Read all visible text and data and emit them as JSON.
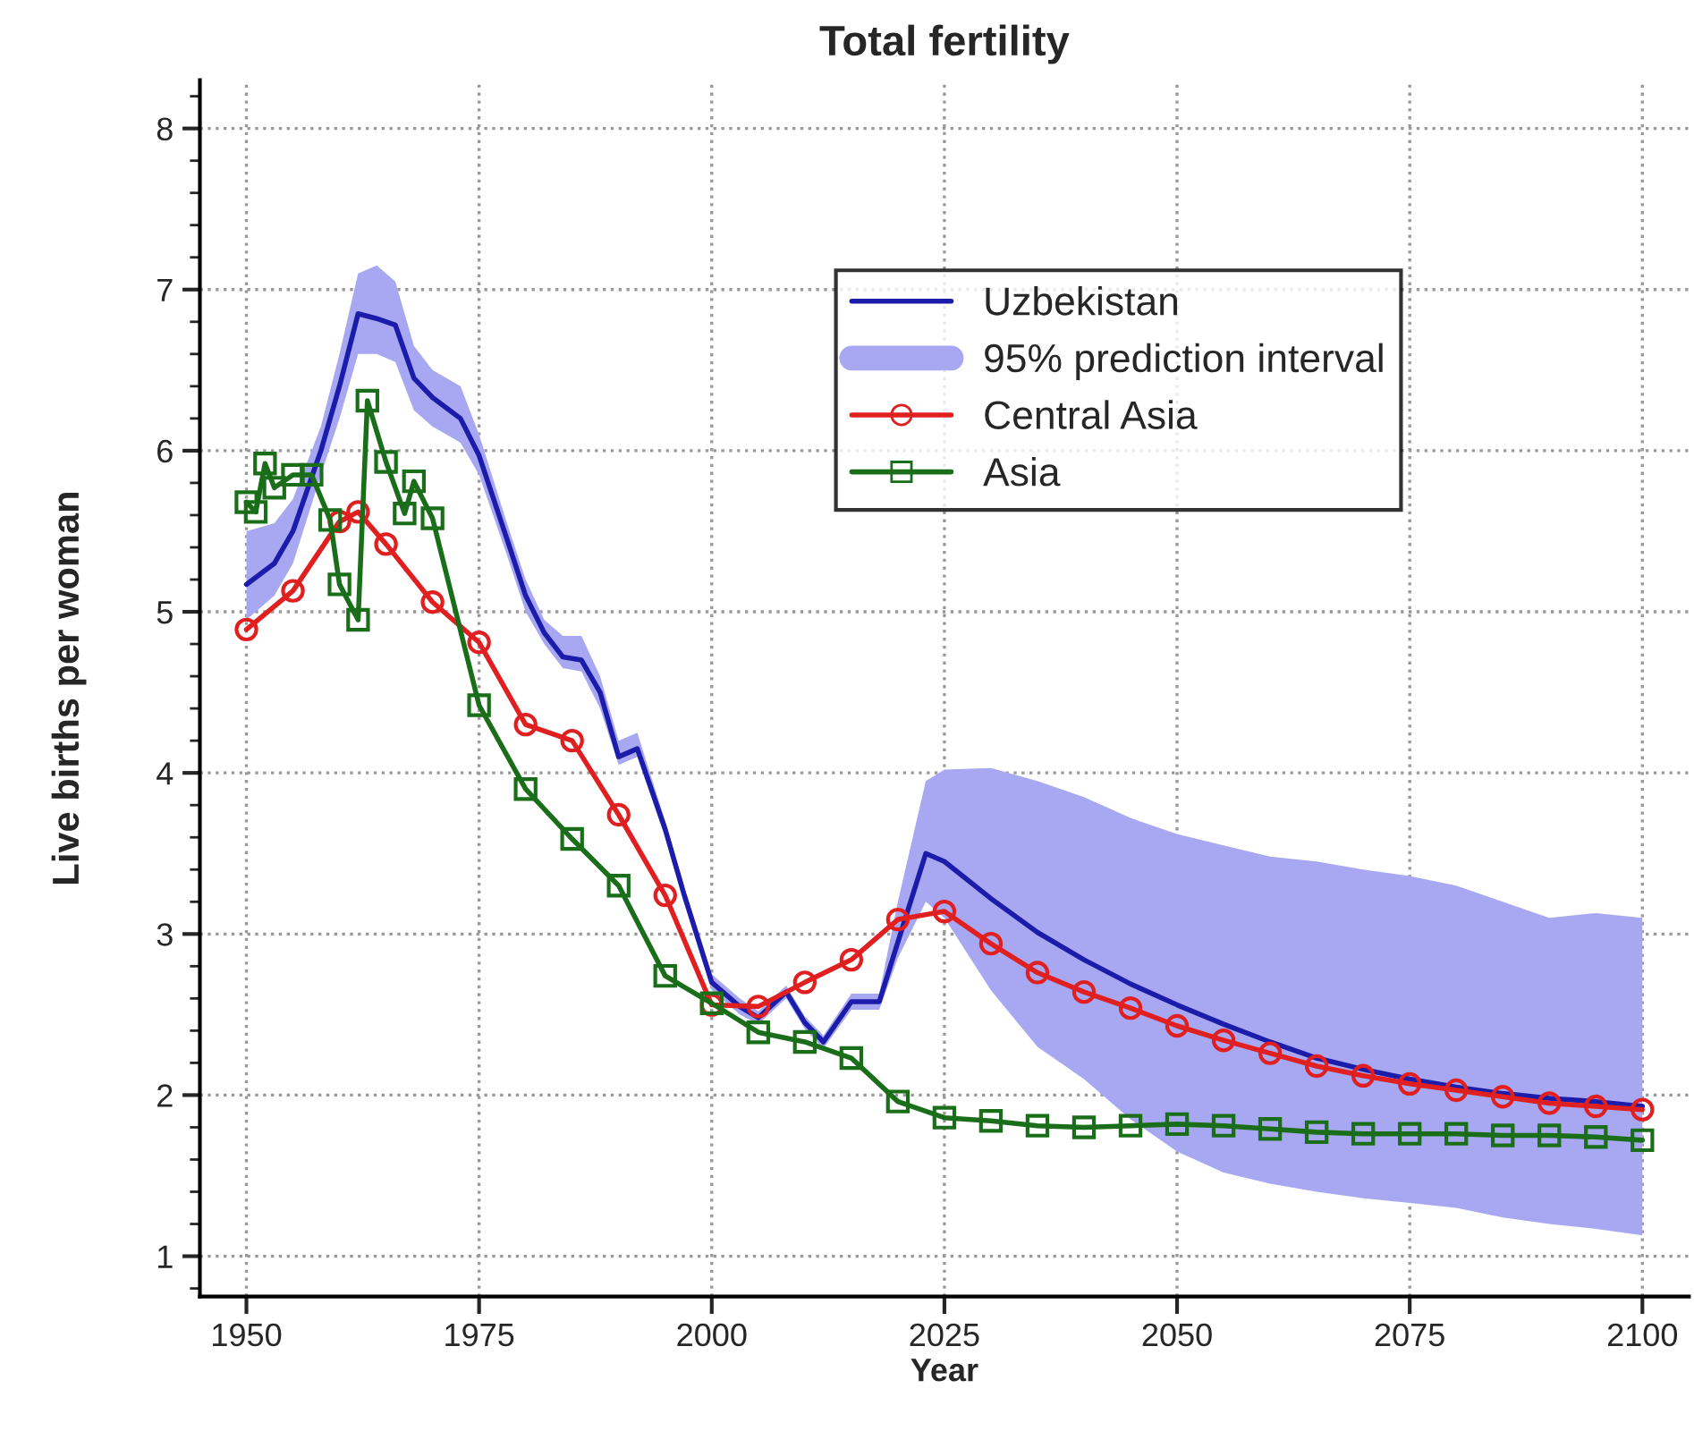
{
  "chart_data": {
    "type": "line",
    "title": "Total fertility",
    "xlabel": "Year",
    "ylabel": "Live births per woman",
    "xlim": [
      1945,
      2105
    ],
    "xticks": [
      1950,
      1975,
      2000,
      2025,
      2050,
      2075,
      2100
    ],
    "ylim": [
      0.75,
      8.3
    ],
    "yticks": [
      1,
      2,
      3,
      4,
      5,
      6,
      7,
      8
    ],
    "grid": true,
    "legend": "top right",
    "series": [
      {
        "name": "Uzbekistan",
        "color": "#1c1caa",
        "marker": "none",
        "x": [
          1950,
          1953,
          1955,
          1958,
          1960,
          1962,
          1964,
          1966,
          1968,
          1970,
          1973,
          1975,
          1978,
          1980,
          1982,
          1984,
          1986,
          1988,
          1990,
          1992,
          1995,
          1997,
          2000,
          2003,
          2005,
          2008,
          2010,
          2012,
          2015,
          2018,
          2020,
          2023,
          2025,
          2030,
          2035,
          2040,
          2045,
          2050,
          2055,
          2060,
          2065,
          2070,
          2075,
          2080,
          2085,
          2090,
          2095,
          2100
        ],
        "values": [
          5.17,
          5.3,
          5.5,
          6.0,
          6.4,
          6.85,
          6.82,
          6.78,
          6.45,
          6.33,
          6.2,
          5.97,
          5.45,
          5.1,
          4.87,
          4.72,
          4.7,
          4.5,
          4.1,
          4.15,
          3.65,
          3.25,
          2.7,
          2.55,
          2.48,
          2.64,
          2.45,
          2.33,
          2.58,
          2.58,
          2.95,
          3.5,
          3.45,
          3.22,
          3.01,
          2.84,
          2.69,
          2.56,
          2.44,
          2.33,
          2.23,
          2.16,
          2.1,
          2.05,
          2.01,
          1.98,
          1.96,
          1.93
        ],
        "lower": [
          4.95,
          5.1,
          5.3,
          5.85,
          6.2,
          6.6,
          6.6,
          6.55,
          6.25,
          6.15,
          6.05,
          5.85,
          5.35,
          5.0,
          4.8,
          4.65,
          4.63,
          4.4,
          4.05,
          4.1,
          3.6,
          3.2,
          2.65,
          2.5,
          2.44,
          2.6,
          2.41,
          2.29,
          2.53,
          2.53,
          2.85,
          3.2,
          3.1,
          2.65,
          2.3,
          2.1,
          1.85,
          1.65,
          1.52,
          1.45,
          1.4,
          1.36,
          1.33,
          1.3,
          1.24,
          1.2,
          1.17,
          1.13
        ],
        "upper": [
          5.5,
          5.55,
          5.7,
          6.15,
          6.6,
          7.1,
          7.15,
          7.05,
          6.65,
          6.5,
          6.4,
          6.1,
          5.55,
          5.2,
          4.95,
          4.85,
          4.85,
          4.6,
          4.2,
          4.25,
          3.7,
          3.3,
          2.75,
          2.6,
          2.52,
          2.68,
          2.49,
          2.37,
          2.63,
          2.63,
          3.2,
          3.95,
          4.02,
          4.03,
          3.95,
          3.85,
          3.72,
          3.62,
          3.55,
          3.48,
          3.45,
          3.4,
          3.36,
          3.3,
          3.2,
          3.1,
          3.13,
          3.1
        ]
      },
      {
        "type": "area",
        "name": "95% prediction interval",
        "color": "#a8a8f2"
      },
      {
        "name": "Central Asia",
        "color": "#e02020",
        "marker": "circle",
        "x": [
          1950,
          1955,
          1960,
          1962,
          1965,
          1970,
          1975,
          1980,
          1985,
          1990,
          1995,
          2000,
          2005,
          2010,
          2015,
          2020,
          2025,
          2030,
          2035,
          2040,
          2045,
          2050,
          2055,
          2060,
          2065,
          2070,
          2075,
          2080,
          2085,
          2090,
          2095,
          2100
        ],
        "values": [
          4.89,
          5.13,
          5.56,
          5.62,
          5.42,
          5.06,
          4.81,
          4.3,
          4.2,
          3.74,
          3.24,
          2.56,
          2.55,
          2.7,
          2.84,
          3.09,
          3.14,
          2.94,
          2.76,
          2.64,
          2.54,
          2.43,
          2.34,
          2.26,
          2.18,
          2.12,
          2.07,
          2.03,
          1.99,
          1.95,
          1.93,
          1.91
        ]
      },
      {
        "name": "Asia",
        "color": "#1a6e1a",
        "marker": "square",
        "x": [
          1950,
          1951,
          1952,
          1953,
          1955,
          1957,
          1959,
          1960,
          1962,
          1963,
          1965,
          1967,
          1968,
          1970,
          1975,
          1980,
          1985,
          1990,
          1995,
          2000,
          2005,
          2010,
          2015,
          2020,
          2025,
          2030,
          2035,
          2040,
          2045,
          2050,
          2055,
          2060,
          2065,
          2070,
          2075,
          2080,
          2085,
          2090,
          2095,
          2100
        ],
        "values": [
          5.68,
          5.62,
          5.92,
          5.77,
          5.85,
          5.85,
          5.57,
          5.17,
          4.95,
          6.31,
          5.93,
          5.61,
          5.81,
          5.58,
          4.42,
          3.9,
          3.59,
          3.3,
          2.74,
          2.57,
          2.39,
          2.33,
          2.23,
          1.96,
          1.86,
          1.84,
          1.81,
          1.8,
          1.81,
          1.82,
          1.81,
          1.79,
          1.77,
          1.76,
          1.76,
          1.76,
          1.75,
          1.75,
          1.74,
          1.72
        ]
      }
    ]
  }
}
